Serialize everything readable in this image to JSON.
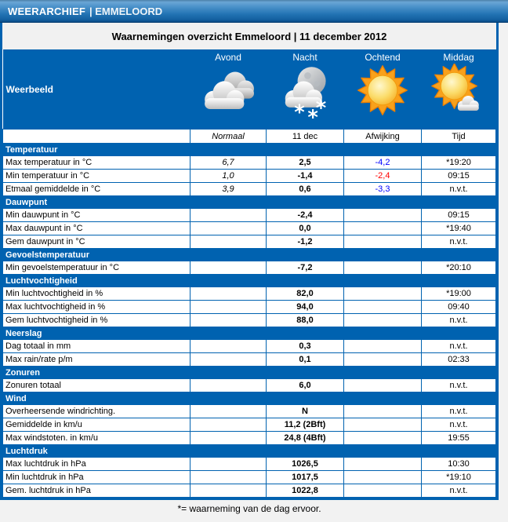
{
  "header": {
    "brand": "WEERARCHIEF",
    "separator": "|",
    "location": "EMMELOORD"
  },
  "page_title": "Waarnemingen overzicht Emmeloord | 11 december 2012",
  "weerbeeld": {
    "label": "Weerbeeld",
    "periods": [
      {
        "label": "Avond",
        "icon": "cloudy-icon"
      },
      {
        "label": "Nacht",
        "icon": "night-cloud-snow-icon"
      },
      {
        "label": "Ochtend",
        "icon": "sunny-icon"
      },
      {
        "label": "Middag",
        "icon": "sun-with-cloud-icon"
      }
    ]
  },
  "columns": {
    "normaal": "Normaal",
    "date": "11 dec",
    "afwijking": "Afwijking",
    "tijd": "Tijd"
  },
  "sections": [
    {
      "title": "Temperatuur",
      "rows": [
        {
          "label": "Max temperatuur in °C",
          "normaal": "6,7",
          "value": "2,5",
          "afwijking": "-4,2",
          "afwijking_color": "blue",
          "tijd": "*19:20"
        },
        {
          "label": "Min temperatuur in °C",
          "normaal": "1,0",
          "value": "-1,4",
          "afwijking": "-2,4",
          "afwijking_color": "red",
          "tijd": "09:15"
        },
        {
          "label": "Etmaal gemiddelde in °C",
          "normaal": "3,9",
          "value": "0,6",
          "afwijking": "-3,3",
          "afwijking_color": "blue",
          "tijd": "n.v.t."
        }
      ]
    },
    {
      "title": "Dauwpunt",
      "rows": [
        {
          "label": "Min dauwpunt in °C",
          "normaal": "",
          "value": "-2,4",
          "afwijking": "",
          "tijd": "09:15"
        },
        {
          "label": "Max dauwpunt in °C",
          "normaal": "",
          "value": "0,0",
          "afwijking": "",
          "tijd": "*19:40"
        },
        {
          "label": "Gem dauwpunt in °C",
          "normaal": "",
          "value": "-1,2",
          "afwijking": "",
          "tijd": "n.v.t."
        }
      ]
    },
    {
      "title": "Gevoelstemperatuur",
      "rows": [
        {
          "label": "Min gevoelstemperatuur in °C",
          "normaal": "",
          "value": "-7,2",
          "afwijking": "",
          "tijd": "*20:10"
        }
      ]
    },
    {
      "title": "Luchtvochtigheid",
      "rows": [
        {
          "label": "Min luchtvochtigheid in %",
          "normaal": "",
          "value": "82,0",
          "afwijking": "",
          "tijd": "*19:00"
        },
        {
          "label": "Max luchtvochtigheid in %",
          "normaal": "",
          "value": "94,0",
          "afwijking": "",
          "tijd": "09:40"
        },
        {
          "label": "Gem luchtvochtigheid in %",
          "normaal": "",
          "value": "88,0",
          "afwijking": "",
          "tijd": "n.v.t."
        }
      ]
    },
    {
      "title": "Neerslag",
      "rows": [
        {
          "label": "Dag totaal in mm",
          "normaal": "",
          "value": "0,3",
          "afwijking": "",
          "tijd": "n.v.t."
        },
        {
          "label": "Max rain/rate p/m",
          "normaal": "",
          "value": "0,1",
          "afwijking": "",
          "tijd": "02:33"
        }
      ]
    },
    {
      "title": "Zonuren",
      "rows": [
        {
          "label": "Zonuren totaal",
          "normaal": "",
          "value": "6,0",
          "afwijking": "",
          "tijd": "n.v.t."
        }
      ]
    },
    {
      "title": "Wind",
      "rows": [
        {
          "label": "Overheersende windrichting.",
          "normaal": "",
          "value": "N",
          "afwijking": "",
          "tijd": "n.v.t."
        },
        {
          "label": "Gemiddelde in km/u",
          "normaal": "",
          "value": "11,2 (2Bft)",
          "afwijking": "",
          "tijd": "n.v.t."
        },
        {
          "label": "Max windstoten. in km/u",
          "normaal": "",
          "value": "24,8 (4Bft)",
          "afwijking": "",
          "tijd": "19:55"
        }
      ]
    },
    {
      "title": "Luchtdruk",
      "rows": [
        {
          "label": "Max luchtdruk in hPa",
          "normaal": "",
          "value": "1026,5",
          "afwijking": "",
          "tijd": "10:30"
        },
        {
          "label": "Min luchtdruk in hPa",
          "normaal": "",
          "value": "1017,5",
          "afwijking": "",
          "tijd": "*19:10"
        },
        {
          "label": "Gem. luchtdruk in hPa",
          "normaal": "",
          "value": "1022,8",
          "afwijking": "",
          "tijd": "n.v.t."
        }
      ]
    }
  ],
  "footer_note": "*= waarneming van de dag ervoor.",
  "colors": {
    "accent_blue": "#0062b0",
    "deviation_blue": "#0000ff",
    "deviation_red": "#ff0000"
  }
}
